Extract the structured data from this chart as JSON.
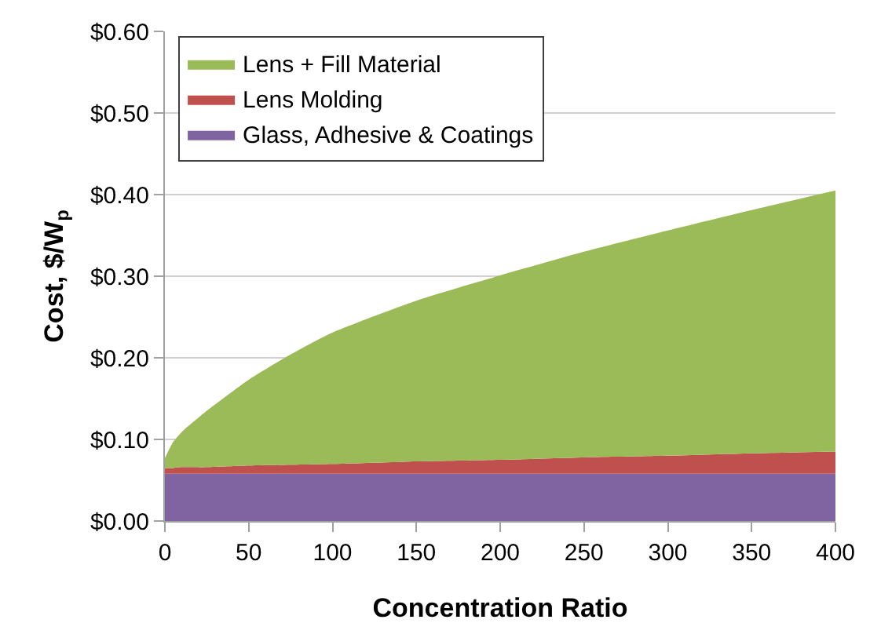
{
  "chart_data": {
    "type": "area",
    "stacked": true,
    "xlabel": "Concentration Ratio",
    "ylabel": "Cost, $/W$_{p}$",
    "x": [
      0,
      5,
      10,
      25,
      50,
      75,
      100,
      150,
      200,
      250,
      300,
      350,
      400
    ],
    "series": [
      {
        "name": "Glass, Adhesive & Coatings",
        "color": "#8064a2",
        "values": [
          0.058,
          0.058,
          0.058,
          0.058,
          0.058,
          0.058,
          0.058,
          0.058,
          0.058,
          0.058,
          0.058,
          0.058,
          0.058
        ]
      },
      {
        "name": "Lens Molding",
        "color": "#c0504d",
        "values": [
          0.007,
          0.007,
          0.008,
          0.008,
          0.01,
          0.011,
          0.012,
          0.015,
          0.017,
          0.02,
          0.022,
          0.025,
          0.027
        ]
      },
      {
        "name": "Lens + Fill Material",
        "color": "#9bbb59",
        "values": [
          0.012,
          0.032,
          0.043,
          0.069,
          0.105,
          0.135,
          0.161,
          0.197,
          0.226,
          0.252,
          0.276,
          0.298,
          0.32
        ]
      }
    ],
    "xlim": [
      0,
      400
    ],
    "xticks": [
      0,
      50,
      100,
      150,
      200,
      250,
      300,
      350,
      400
    ],
    "ylim": [
      0,
      0.6
    ],
    "yticks": [
      {
        "value": 0,
        "label": "$0.00"
      },
      {
        "value": 0.1,
        "label": "$0.10"
      },
      {
        "value": 0.2,
        "label": "$0.20"
      },
      {
        "value": 0.3,
        "label": "$0.30"
      },
      {
        "value": 0.4,
        "label": "$0.40"
      },
      {
        "value": 0.5,
        "label": "$0.50"
      },
      {
        "value": 0.6,
        "label": "$0.60"
      }
    ],
    "grid": "y",
    "legend": "top left"
  }
}
